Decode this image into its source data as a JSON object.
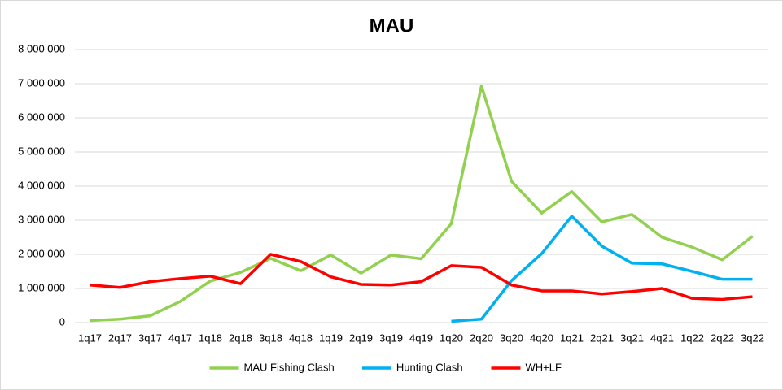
{
  "chart_data": {
    "type": "line",
    "title": "MAU",
    "categories": [
      "1q17",
      "2q17",
      "3q17",
      "4q17",
      "1q18",
      "2q18",
      "3q18",
      "4q18",
      "1q19",
      "2q19",
      "3q19",
      "4q19",
      "1q20",
      "2q20",
      "3q20",
      "4q20",
      "1q21",
      "2q21",
      "3q21",
      "4q21",
      "1q22",
      "2q22",
      "3q22"
    ],
    "series": [
      {
        "name": "MAU Fishing Clash",
        "color": "#92d050",
        "values": [
          60000,
          100000,
          200000,
          620000,
          1220000,
          1470000,
          1880000,
          1520000,
          1980000,
          1450000,
          1980000,
          1870000,
          2900000,
          6930000,
          4140000,
          3210000,
          3840000,
          2950000,
          3170000,
          2500000,
          2210000,
          1840000,
          2530000
        ]
      },
      {
        "name": "Hunting Clash",
        "color": "#00b0f0",
        "values": [
          null,
          null,
          null,
          null,
          null,
          null,
          null,
          null,
          null,
          null,
          null,
          null,
          40000,
          100000,
          1230000,
          2020000,
          3120000,
          2240000,
          1740000,
          1720000,
          1500000,
          1270000,
          1270000
        ]
      },
      {
        "name": "WH+LF",
        "color": "#ff0000",
        "values": [
          1100000,
          1030000,
          1200000,
          1290000,
          1360000,
          1140000,
          2000000,
          1790000,
          1340000,
          1120000,
          1100000,
          1200000,
          1670000,
          1620000,
          1100000,
          930000,
          930000,
          840000,
          910000,
          1000000,
          710000,
          680000,
          760000
        ]
      }
    ],
    "ylim": [
      0,
      8000000
    ],
    "yticks": [
      0,
      {
        "value": 1000000,
        "label": "1 000 000"
      },
      {
        "value": 2000000,
        "label": "2 000 000"
      },
      {
        "value": 3000000,
        "label": "3 000 000"
      },
      {
        "value": 4000000,
        "label": "4 000 000"
      },
      {
        "value": 5000000,
        "label": "5 000 000"
      },
      {
        "value": 6000000,
        "label": "6 000 000"
      },
      {
        "value": 7000000,
        "label": "7 000 000"
      },
      {
        "value": 8000000,
        "label": "8 000 000"
      }
    ],
    "grid": true,
    "legend": "bottom"
  }
}
